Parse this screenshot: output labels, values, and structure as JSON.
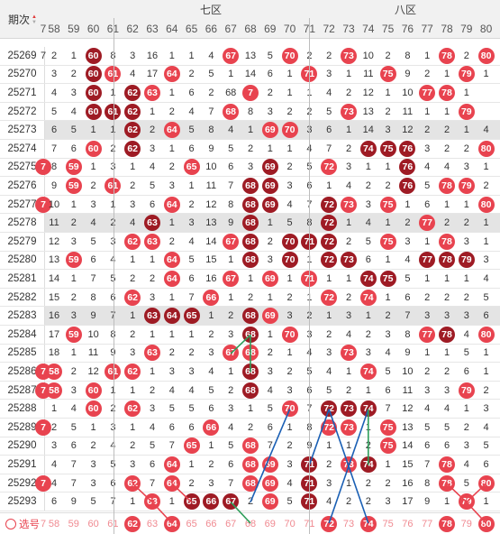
{
  "header": {
    "period_label": "期次",
    "zone_7": "七区",
    "zone_8": "八区",
    "columns": [
      "7",
      "58",
      "59",
      "60",
      "61",
      "62",
      "63",
      "64",
      "65",
      "66",
      "67",
      "68",
      "69",
      "70",
      "71",
      "72",
      "73",
      "74",
      "75",
      "76",
      "77",
      "78",
      "79",
      "80"
    ]
  },
  "footer": {
    "select_label": "选号"
  },
  "colors": {
    "ball_red": "#e8434f",
    "ball_dark": "#9e1b24",
    "line_blue": "#1a5fb4",
    "line_green": "#2e9e5a",
    "line_pink": "#e8434f"
  },
  "rows": [
    {
      "p": "25269",
      "c": [
        "7",
        "2",
        "1",
        "60",
        "8",
        "3",
        "16",
        "1",
        "1",
        "4",
        "67",
        "13",
        "5",
        "70",
        "2",
        "2",
        "73",
        "10",
        "2",
        "8",
        "1",
        "78",
        "2",
        "80"
      ],
      "hl": [
        3,
        10,
        13,
        16,
        21,
        23
      ],
      "dk": [
        3
      ]
    },
    {
      "p": "25270",
      "c": [
        "",
        "3",
        "2",
        "60",
        "61",
        "4",
        "17",
        "64",
        "2",
        "5",
        "1",
        "14",
        "6",
        "1",
        "71",
        "3",
        "1",
        "11",
        "75",
        "9",
        "2",
        "1",
        "79",
        "1"
      ],
      "hl": [
        3,
        4,
        7,
        14,
        18,
        22
      ],
      "dk": [
        3
      ]
    },
    {
      "p": "25271",
      "c": [
        "",
        "4",
        "3",
        "60",
        "1",
        "62",
        "63",
        "1",
        "6",
        "2",
        "68",
        "7",
        "2",
        "1",
        "1",
        "4",
        "2",
        "12",
        "1",
        "10",
        "77",
        "78",
        "1",
        ""
      ],
      "hl": [
        3,
        5,
        6,
        11,
        20,
        21
      ],
      "dk": [
        3,
        5
      ]
    },
    {
      "p": "25272",
      "c": [
        "",
        "5",
        "4",
        "60",
        "61",
        "62",
        "1",
        "2",
        "4",
        "7",
        "68",
        "8",
        "3",
        "2",
        "2",
        "5",
        "73",
        "13",
        "2",
        "11",
        "1",
        "1",
        "79",
        ""
      ],
      "hl": [
        3,
        4,
        5,
        10,
        16,
        22
      ],
      "dk": [
        3,
        4,
        5
      ]
    },
    {
      "p": "25273",
      "c": [
        "",
        "6",
        "5",
        "1",
        "1",
        "62",
        "2",
        "64",
        "5",
        "8",
        "4",
        "1",
        "69",
        "70",
        "3",
        "6",
        "1",
        "14",
        "3",
        "12",
        "2",
        "2",
        "1",
        "4"
      ],
      "hl": [
        5,
        7,
        12,
        13
      ],
      "dk": [
        5
      ],
      "band": true
    },
    {
      "p": "25274",
      "c": [
        "",
        "7",
        "6",
        "60",
        "2",
        "62",
        "3",
        "1",
        "6",
        "9",
        "5",
        "2",
        "1",
        "1",
        "4",
        "7",
        "2",
        "74",
        "75",
        "76",
        "3",
        "2",
        "2",
        "80"
      ],
      "hl": [
        3,
        5,
        17,
        18,
        19,
        23
      ],
      "dk": [
        5,
        17,
        18,
        19
      ]
    },
    {
      "p": "25275",
      "c": [
        "7",
        "8",
        "59",
        "1",
        "3",
        "1",
        "4",
        "2",
        "65",
        "10",
        "6",
        "3",
        "69",
        "2",
        "5",
        "72",
        "3",
        "1",
        "1",
        "76",
        "4",
        "4",
        "3",
        "1"
      ],
      "hl": [
        0,
        2,
        8,
        12,
        15,
        19
      ],
      "dk": [
        12,
        19
      ]
    },
    {
      "p": "25276",
      "c": [
        "",
        "9",
        "59",
        "2",
        "61",
        "2",
        "5",
        "3",
        "1",
        "11",
        "7",
        "68",
        "69",
        "3",
        "6",
        "1",
        "4",
        "2",
        "2",
        "76",
        "5",
        "78",
        "79",
        "2"
      ],
      "hl": [
        2,
        4,
        11,
        12,
        19,
        21,
        22
      ],
      "dk": [
        11,
        12,
        19
      ]
    },
    {
      "p": "25277",
      "c": [
        "7",
        "10",
        "1",
        "3",
        "1",
        "3",
        "6",
        "64",
        "2",
        "12",
        "8",
        "68",
        "69",
        "4",
        "7",
        "72",
        "73",
        "3",
        "75",
        "1",
        "6",
        "1",
        "1",
        "80"
      ],
      "hl": [
        0,
        7,
        11,
        12,
        15,
        16,
        18,
        23
      ],
      "dk": [
        11,
        12,
        15
      ]
    },
    {
      "p": "25278",
      "c": [
        "",
        "11",
        "2",
        "4",
        "2",
        "4",
        "63",
        "1",
        "3",
        "13",
        "9",
        "68",
        "1",
        "5",
        "8",
        "72",
        "1",
        "4",
        "1",
        "2",
        "77",
        "2",
        "2",
        "1"
      ],
      "hl": [
        6,
        11,
        15,
        20
      ],
      "dk": [
        6,
        11,
        15
      ],
      "band": true
    },
    {
      "p": "25279",
      "c": [
        "",
        "12",
        "3",
        "5",
        "3",
        "62",
        "63",
        "2",
        "4",
        "14",
        "67",
        "68",
        "2",
        "70",
        "71",
        "72",
        "2",
        "5",
        "75",
        "3",
        "1",
        "78",
        "3",
        "1"
      ],
      "hl": [
        5,
        6,
        10,
        11,
        13,
        14,
        15,
        18,
        21
      ],
      "dk": [
        11,
        13,
        14,
        15
      ]
    },
    {
      "p": "25280",
      "c": [
        "",
        "13",
        "59",
        "6",
        "4",
        "1",
        "1",
        "64",
        "5",
        "15",
        "1",
        "68",
        "3",
        "70",
        "1",
        "72",
        "73",
        "6",
        "1",
        "4",
        "77",
        "78",
        "79",
        "3"
      ],
      "hl": [
        2,
        7,
        11,
        13,
        15,
        16,
        20,
        21,
        22
      ],
      "dk": [
        11,
        13,
        15,
        16,
        20,
        21,
        22
      ]
    },
    {
      "p": "25281",
      "c": [
        "",
        "14",
        "1",
        "7",
        "5",
        "2",
        "2",
        "64",
        "6",
        "16",
        "67",
        "1",
        "69",
        "1",
        "71",
        "1",
        "1",
        "74",
        "75",
        "5",
        "1",
        "1",
        "1",
        "4"
      ],
      "hl": [
        7,
        10,
        12,
        14,
        17,
        18
      ],
      "dk": [
        17,
        18
      ]
    },
    {
      "p": "25282",
      "c": [
        "",
        "15",
        "2",
        "8",
        "6",
        "62",
        "3",
        "1",
        "7",
        "66",
        "1",
        "2",
        "1",
        "2",
        "1",
        "72",
        "2",
        "74",
        "1",
        "6",
        "2",
        "2",
        "2",
        "5"
      ],
      "hl": [
        5,
        9,
        15,
        17
      ],
      "dk": []
    },
    {
      "p": "25283",
      "c": [
        "",
        "16",
        "3",
        "9",
        "7",
        "1",
        "63",
        "64",
        "65",
        "1",
        "2",
        "68",
        "69",
        "3",
        "2",
        "1",
        "3",
        "1",
        "2",
        "7",
        "3",
        "3",
        "3",
        "6"
      ],
      "hl": [
        6,
        7,
        8,
        11,
        12
      ],
      "dk": [
        6,
        7,
        8,
        11
      ],
      "band": true
    },
    {
      "p": "25284",
      "c": [
        "",
        "17",
        "59",
        "10",
        "8",
        "2",
        "1",
        "1",
        "1",
        "2",
        "3",
        "68",
        "1",
        "70",
        "3",
        "2",
        "4",
        "2",
        "3",
        "8",
        "77",
        "78",
        "4",
        "80"
      ],
      "hl": [
        2,
        11,
        13,
        20,
        21,
        23
      ],
      "dk": [
        11,
        21
      ]
    },
    {
      "p": "25285",
      "c": [
        "",
        "18",
        "1",
        "11",
        "9",
        "3",
        "63",
        "2",
        "2",
        "3",
        "67",
        "68",
        "2",
        "1",
        "4",
        "3",
        "73",
        "3",
        "4",
        "9",
        "1",
        "1",
        "5",
        "1"
      ],
      "hl": [
        6,
        10,
        11,
        16
      ],
      "dk": []
    },
    {
      "p": "25286",
      "c": [
        "7",
        "58",
        "2",
        "12",
        "61",
        "62",
        "1",
        "3",
        "3",
        "4",
        "1",
        "68",
        "3",
        "2",
        "5",
        "4",
        "1",
        "74",
        "5",
        "10",
        "2",
        "2",
        "6",
        "1"
      ],
      "hl": [
        0,
        1,
        4,
        5,
        11,
        17
      ],
      "dk": [
        11
      ]
    },
    {
      "p": "25287",
      "c": [
        "7",
        "58",
        "3",
        "60",
        "1",
        "1",
        "2",
        "4",
        "4",
        "5",
        "2",
        "68",
        "4",
        "3",
        "6",
        "5",
        "2",
        "1",
        "6",
        "11",
        "3",
        "3",
        "79",
        "2"
      ],
      "hl": [
        0,
        1,
        3,
        11,
        22
      ],
      "dk": [
        11
      ]
    },
    {
      "p": "25288",
      "c": [
        "",
        "1",
        "4",
        "60",
        "2",
        "62",
        "3",
        "5",
        "5",
        "6",
        "3",
        "1",
        "5",
        "70",
        "7",
        "72",
        "73",
        "74",
        "7",
        "12",
        "4",
        "4",
        "1",
        "3"
      ],
      "hl": [
        3,
        5,
        13,
        15,
        16,
        17
      ],
      "dk": [
        15,
        16,
        17
      ]
    },
    {
      "p": "25289",
      "c": [
        "7",
        "2",
        "5",
        "1",
        "3",
        "1",
        "4",
        "6",
        "6",
        "66",
        "4",
        "2",
        "6",
        "1",
        "8",
        "72",
        "73",
        "1",
        "75",
        "13",
        "5",
        "5",
        "2",
        "4"
      ],
      "hl": [
        0,
        9,
        15,
        16,
        18
      ],
      "dk": []
    },
    {
      "p": "25290",
      "c": [
        "",
        "3",
        "6",
        "2",
        "4",
        "2",
        "5",
        "7",
        "65",
        "1",
        "5",
        "68",
        "7",
        "2",
        "9",
        "1",
        "1",
        "2",
        "75",
        "14",
        "6",
        "6",
        "3",
        "5"
      ],
      "hl": [
        8,
        11,
        18
      ],
      "dk": []
    },
    {
      "p": "25291",
      "c": [
        "",
        "4",
        "7",
        "3",
        "5",
        "3",
        "6",
        "64",
        "1",
        "2",
        "6",
        "68",
        "69",
        "3",
        "71",
        "2",
        "73",
        "74",
        "1",
        "15",
        "7",
        "78",
        "4",
        "6"
      ],
      "hl": [
        7,
        11,
        12,
        14,
        16,
        17,
        21
      ],
      "dk": [
        14,
        17
      ]
    },
    {
      "p": "25292",
      "c": [
        "7",
        "4",
        "7",
        "3",
        "6",
        "62",
        "7",
        "64",
        "2",
        "3",
        "7",
        "68",
        "69",
        "4",
        "71",
        "3",
        "1",
        "2",
        "2",
        "16",
        "8",
        "78",
        "5",
        "80"
      ],
      "hl": [
        0,
        5,
        7,
        11,
        12,
        14,
        21,
        23
      ],
      "dk": [
        14
      ]
    },
    {
      "p": "25293",
      "c": [
        "",
        "6",
        "9",
        "5",
        "7",
        "1",
        "63",
        "1",
        "65",
        "66",
        "67",
        "2",
        "69",
        "5",
        "71",
        "4",
        "2",
        "2",
        "3",
        "17",
        "9",
        "1",
        "79",
        "1"
      ],
      "hl": [
        6,
        8,
        9,
        10,
        12,
        14,
        22
      ],
      "dk": [
        8,
        9,
        10,
        14
      ]
    }
  ],
  "select_row": {
    "cells": [
      "7",
      "58",
      "59",
      "60",
      "61",
      "62",
      "63",
      "64",
      "65",
      "66",
      "67",
      "68",
      "69",
      "70",
      "71",
      "72",
      "73",
      "74",
      "75",
      "76",
      "77",
      "78",
      "79",
      "80"
    ],
    "hl": [
      5,
      7,
      15,
      17,
      21,
      23
    ]
  }
}
